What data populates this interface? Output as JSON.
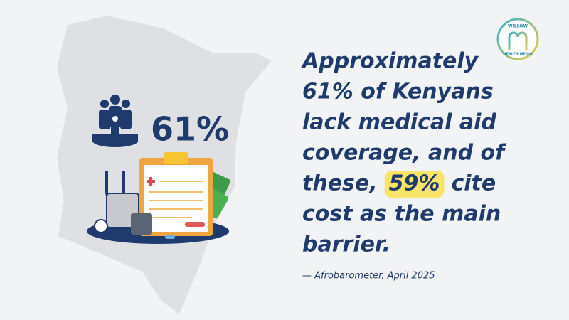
{
  "stat": {
    "value_text": "61%"
  },
  "headline": {
    "lines_before": [
      "Approximately",
      "61% of Kenyans",
      "lack medical aid",
      "coverage, and of"
    ],
    "highlight_line": {
      "start": "these,",
      "highlight": "59%",
      "end": "cite"
    },
    "lines_after": [
      "cost as the main",
      "barrier."
    ]
  },
  "source": "— Afrobarometer, April 2025",
  "logo": {
    "top": "WILLOW",
    "bottom": "HEALTH MEDIA"
  }
}
